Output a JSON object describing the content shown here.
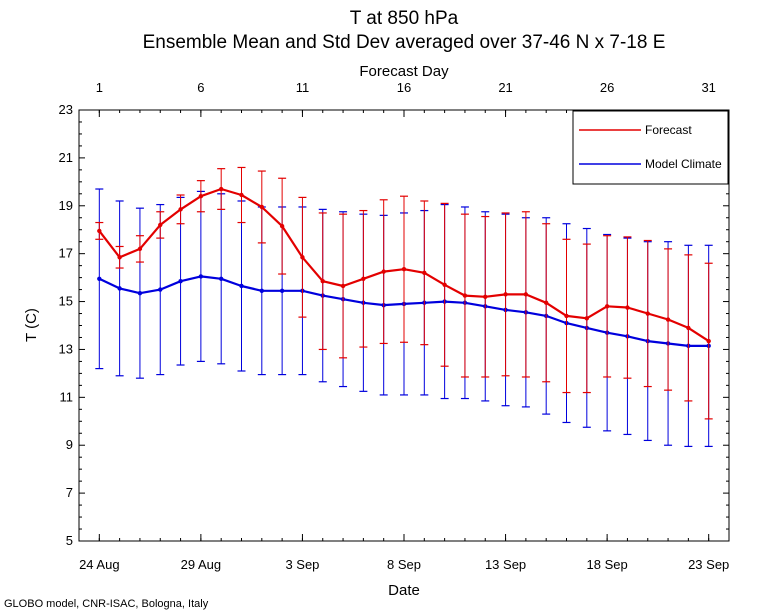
{
  "page": {
    "credit": "GLOBO model, CNR-ISAC, Bologna, Italy"
  },
  "chart_data": {
    "type": "line",
    "title": "T at 850 hPa",
    "subtitle": "Ensemble Mean and Std Dev averaged over 37-46 N x 7-18 E",
    "xlabel": "Date",
    "x2label": "Forecast Day",
    "ylabel": "T (C)",
    "ylim": [
      5,
      23
    ],
    "yticks": [
      5,
      7,
      9,
      11,
      13,
      15,
      17,
      19,
      21,
      23
    ],
    "xlim": [
      0,
      32
    ],
    "x": [
      1,
      2,
      3,
      4,
      5,
      6,
      7,
      8,
      9,
      10,
      11,
      12,
      13,
      14,
      15,
      16,
      17,
      18,
      19,
      20,
      21,
      22,
      23,
      24,
      25,
      26,
      27,
      28,
      29,
      30,
      31
    ],
    "bottom_ticks": [
      {
        "day": 1,
        "label": "24 Aug"
      },
      {
        "day": 6,
        "label": "29 Aug"
      },
      {
        "day": 11,
        "label": "3 Sep"
      },
      {
        "day": 16,
        "label": "8 Sep"
      },
      {
        "day": 21,
        "label": "13 Sep"
      },
      {
        "day": 26,
        "label": "18 Sep"
      },
      {
        "day": 31,
        "label": "23 Sep"
      }
    ],
    "top_ticks": [
      {
        "day": 1,
        "label": "1"
      },
      {
        "day": 6,
        "label": "6"
      },
      {
        "day": 11,
        "label": "11"
      },
      {
        "day": 16,
        "label": "16"
      },
      {
        "day": 21,
        "label": "21"
      },
      {
        "day": 26,
        "label": "26"
      },
      {
        "day": 31,
        "label": "31"
      }
    ],
    "legend_position": "top-right",
    "grid": false,
    "series": [
      {
        "name": "Forecast",
        "color": "#e30000",
        "values": [
          17.95,
          16.85,
          17.2,
          18.2,
          18.85,
          19.4,
          19.7,
          19.45,
          18.95,
          18.15,
          16.85,
          15.85,
          15.65,
          15.95,
          16.25,
          16.35,
          16.2,
          15.7,
          15.25,
          15.2,
          15.3,
          15.3,
          14.95,
          14.4,
          14.3,
          14.8,
          14.75,
          14.5,
          14.25,
          13.9,
          13.35
        ],
        "std": [
          0.35,
          0.45,
          0.55,
          0.55,
          0.6,
          0.65,
          0.85,
          1.15,
          1.5,
          2.0,
          2.5,
          2.85,
          3.0,
          2.85,
          3.0,
          3.05,
          3.0,
          3.4,
          3.4,
          3.35,
          3.4,
          3.45,
          3.3,
          3.2,
          3.1,
          2.95,
          2.95,
          3.05,
          2.95,
          3.05,
          3.25
        ]
      },
      {
        "name": "Model Climate",
        "color": "#0000dd",
        "values": [
          15.95,
          15.55,
          15.35,
          15.5,
          15.85,
          16.05,
          15.95,
          15.65,
          15.45,
          15.45,
          15.45,
          15.25,
          15.1,
          14.95,
          14.85,
          14.9,
          14.95,
          15.0,
          14.95,
          14.8,
          14.65,
          14.55,
          14.4,
          14.1,
          13.9,
          13.7,
          13.55,
          13.35,
          13.25,
          13.15,
          13.15
        ],
        "std": [
          3.75,
          3.65,
          3.55,
          3.55,
          3.5,
          3.55,
          3.55,
          3.55,
          3.5,
          3.5,
          3.5,
          3.6,
          3.65,
          3.7,
          3.75,
          3.8,
          3.85,
          4.05,
          4.0,
          3.95,
          4.0,
          3.95,
          4.1,
          4.15,
          4.15,
          4.1,
          4.1,
          4.15,
          4.25,
          4.2,
          4.2
        ]
      }
    ]
  }
}
